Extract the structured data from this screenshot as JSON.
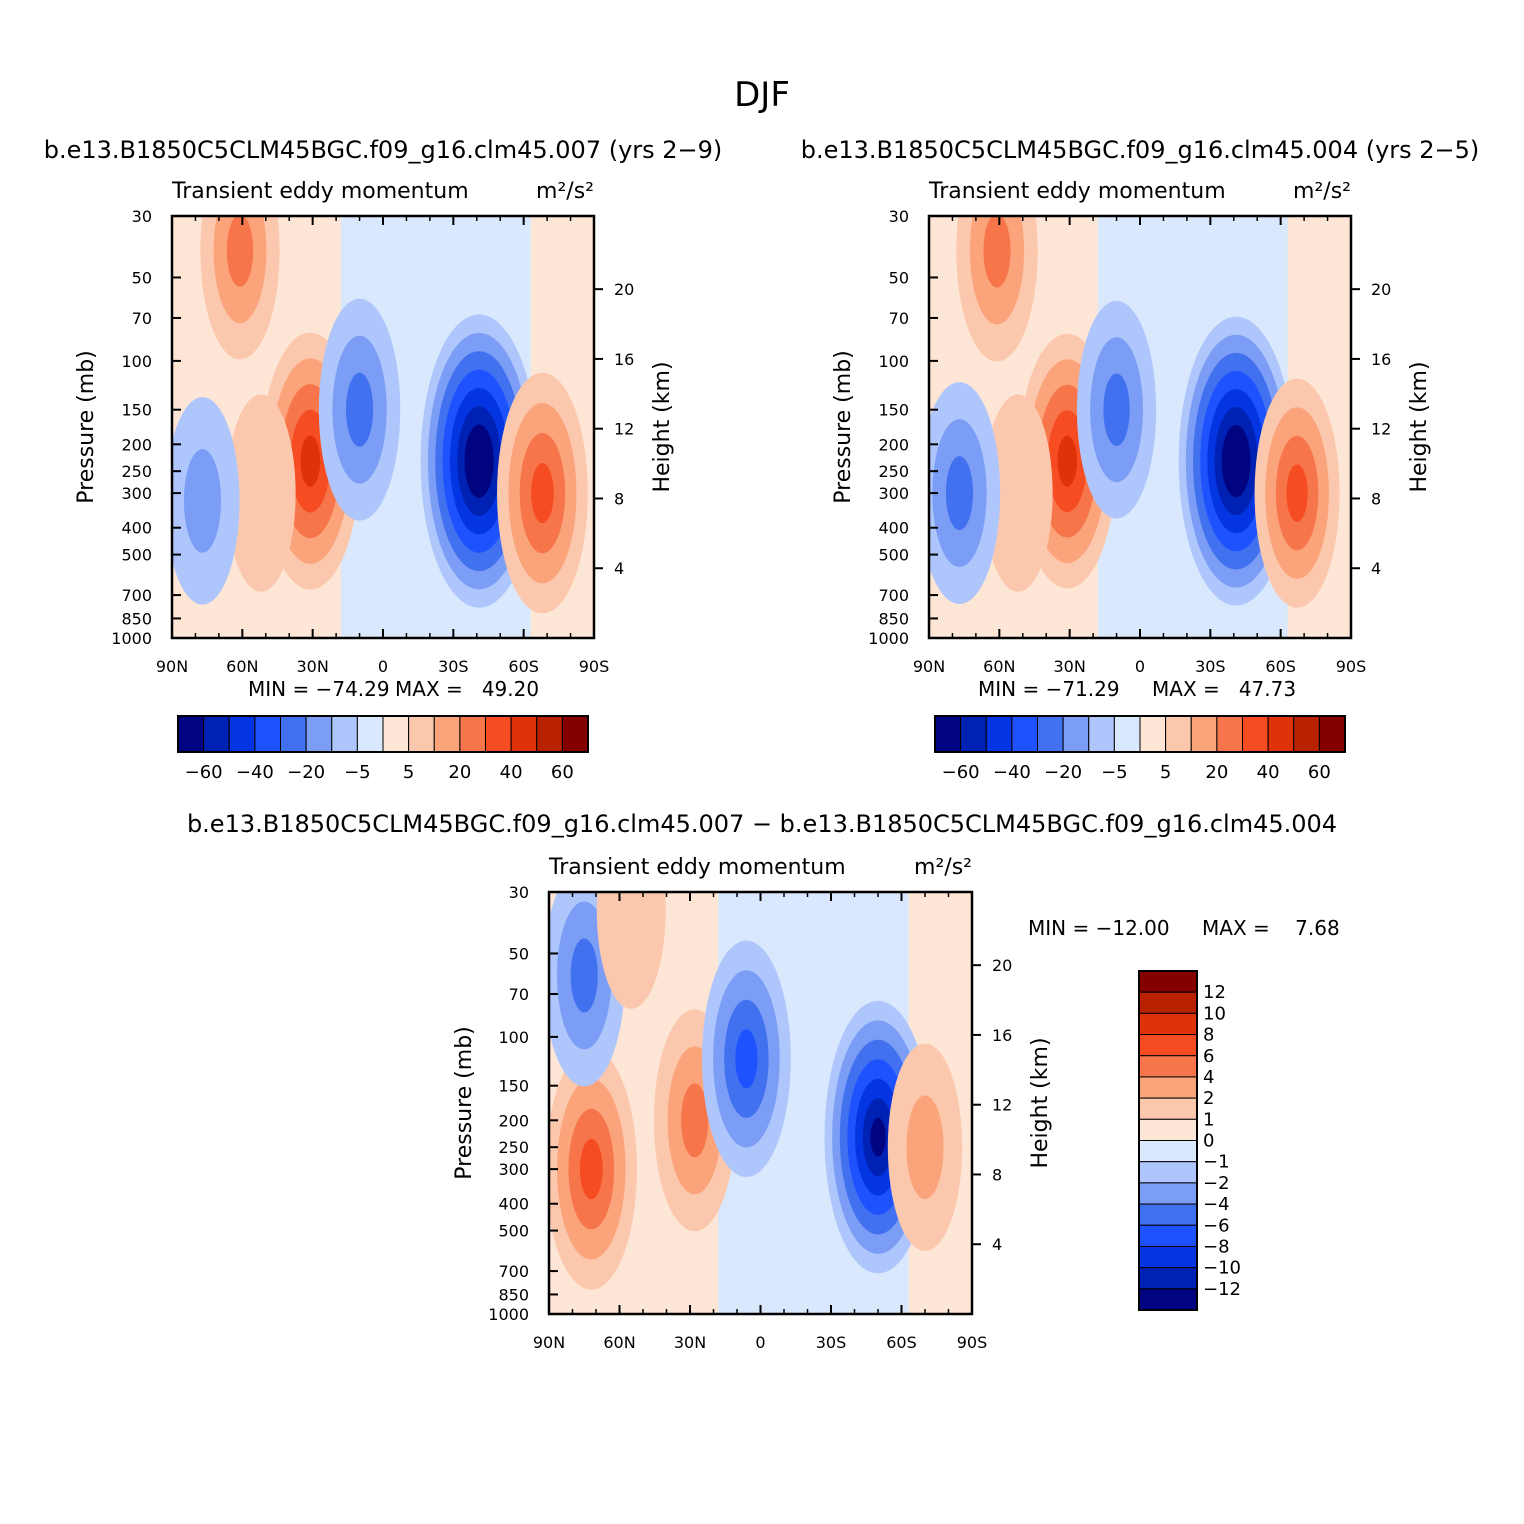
{
  "figure": {
    "title": "DJF"
  },
  "chart_data": [
    {
      "type": "heatmap",
      "id": "p1",
      "title": "b.e13.B1850C5CLM45BGC.f09_g16.clm45.007 (yrs 2−9)",
      "subtitle_left": "Transient eddy momentum",
      "units": "m²/s²",
      "ylabel": "Pressure (mb)",
      "ylabel_right": "Height (km)",
      "x_ticks": [
        "90N",
        "60N",
        "30N",
        "0",
        "30S",
        "60S",
        "90S"
      ],
      "y_ticks": [
        "30",
        "50",
        "70",
        "100",
        "150",
        "200",
        "250",
        "300",
        "400",
        "500",
        "700",
        "850",
        "1000"
      ],
      "y_ticks_right": [
        "4",
        "8",
        "12",
        "16",
        "20"
      ],
      "min_label": "MIN = −74.29",
      "max_label": "MAX =   49.20",
      "min": -74.29,
      "max": 49.2,
      "colorbar_levels": [
        -70,
        -60,
        -50,
        -40,
        -30,
        -20,
        -10,
        -5,
        0,
        5,
        10,
        20,
        30,
        40,
        50,
        60,
        70
      ],
      "colorbar_labels": [
        "−60",
        "−40",
        "−20",
        "−5",
        "5",
        "20",
        "40",
        "60"
      ],
      "features": [
        {
          "lat": 61,
          "p": 40,
          "value": 22
        },
        {
          "lat": 31,
          "p": 230,
          "value": 49.2
        },
        {
          "lat": 52,
          "p": 300,
          "value": 8
        },
        {
          "lat": 10,
          "p": 150,
          "value": -25
        },
        {
          "lat": -41,
          "p": 230,
          "value": -74.29
        },
        {
          "lat": -68,
          "p": 300,
          "value": 38
        },
        {
          "lat": 77,
          "p": 320,
          "value": -15
        },
        {
          "lat": -85,
          "p": 300,
          "value": 4
        }
      ]
    },
    {
      "type": "heatmap",
      "id": "p2",
      "title": "b.e13.B1850C5CLM45BGC.f09_g16.clm45.004 (yrs 2−5)",
      "subtitle_left": "Transient eddy momentum",
      "units": "m²/s²",
      "ylabel": "Pressure (mb)",
      "ylabel_right": "Height (km)",
      "x_ticks": [
        "90N",
        "60N",
        "30N",
        "0",
        "30S",
        "60S",
        "90S"
      ],
      "y_ticks": [
        "30",
        "50",
        "70",
        "100",
        "150",
        "200",
        "250",
        "300",
        "400",
        "500",
        "700",
        "850",
        "1000"
      ],
      "y_ticks_right": [
        "4",
        "8",
        "12",
        "16",
        "20"
      ],
      "min_label": "MIN = −71.29",
      "max_label": "MAX =   47.73",
      "min": -71.29,
      "max": 47.73,
      "colorbar_levels": [
        -70,
        -60,
        -50,
        -40,
        -30,
        -20,
        -10,
        -5,
        0,
        5,
        10,
        20,
        30,
        40,
        50,
        60,
        70
      ],
      "colorbar_labels": [
        "−60",
        "−40",
        "−20",
        "−5",
        "5",
        "20",
        "40",
        "60"
      ],
      "features": [
        {
          "lat": 61,
          "p": 40,
          "value": 25
        },
        {
          "lat": 31,
          "p": 230,
          "value": 47.73
        },
        {
          "lat": 52,
          "p": 300,
          "value": 8
        },
        {
          "lat": 10,
          "p": 150,
          "value": -22
        },
        {
          "lat": -41,
          "p": 230,
          "value": -71.29
        },
        {
          "lat": -67,
          "p": 300,
          "value": 30
        },
        {
          "lat": 77,
          "p": 300,
          "value": -25
        },
        {
          "lat": -85,
          "p": 300,
          "value": 4
        }
      ]
    },
    {
      "type": "heatmap",
      "id": "p3",
      "title": "b.e13.B1850C5CLM45BGC.f09_g16.clm45.007 − b.e13.B1850C5CLM45BGC.f09_g16.clm45.004",
      "subtitle_left": "Transient eddy momentum",
      "units": "m²/s²",
      "ylabel": "Pressure (mb)",
      "ylabel_right": "Height (km)",
      "x_ticks": [
        "90N",
        "60N",
        "30N",
        "0",
        "30S",
        "60S",
        "90S"
      ],
      "y_ticks": [
        "30",
        "50",
        "70",
        "100",
        "150",
        "200",
        "250",
        "300",
        "400",
        "500",
        "700",
        "850",
        "1000"
      ],
      "y_ticks_right": [
        "4",
        "8",
        "12",
        "16",
        "20"
      ],
      "min_label": "MIN = −12.00",
      "max_label": "MAX =    7.68",
      "min": -12.0,
      "max": 7.68,
      "colorbar_levels": [
        -14,
        -12,
        -10,
        -8,
        -6,
        -4,
        -2,
        -1,
        0,
        1,
        2,
        4,
        6,
        8,
        10,
        12,
        14
      ],
      "colorbar_labels": [
        "12",
        "10",
        "8",
        "6",
        "4",
        "2",
        "1",
        "0",
        "−1",
        "−2",
        "−4",
        "−6",
        "−8",
        "−10",
        "−12"
      ],
      "features": [
        {
          "lat": 72,
          "p": 300,
          "value": 7.68
        },
        {
          "lat": 75,
          "p": 60,
          "value": -5
        },
        {
          "lat": 28,
          "p": 200,
          "value": 5
        },
        {
          "lat": 6,
          "p": 120,
          "value": -7
        },
        {
          "lat": -50,
          "p": 230,
          "value": -12.0
        },
        {
          "lat": -70,
          "p": 250,
          "value": 3
        },
        {
          "lat": 55,
          "p": 35,
          "value": 1.5
        }
      ]
    }
  ]
}
